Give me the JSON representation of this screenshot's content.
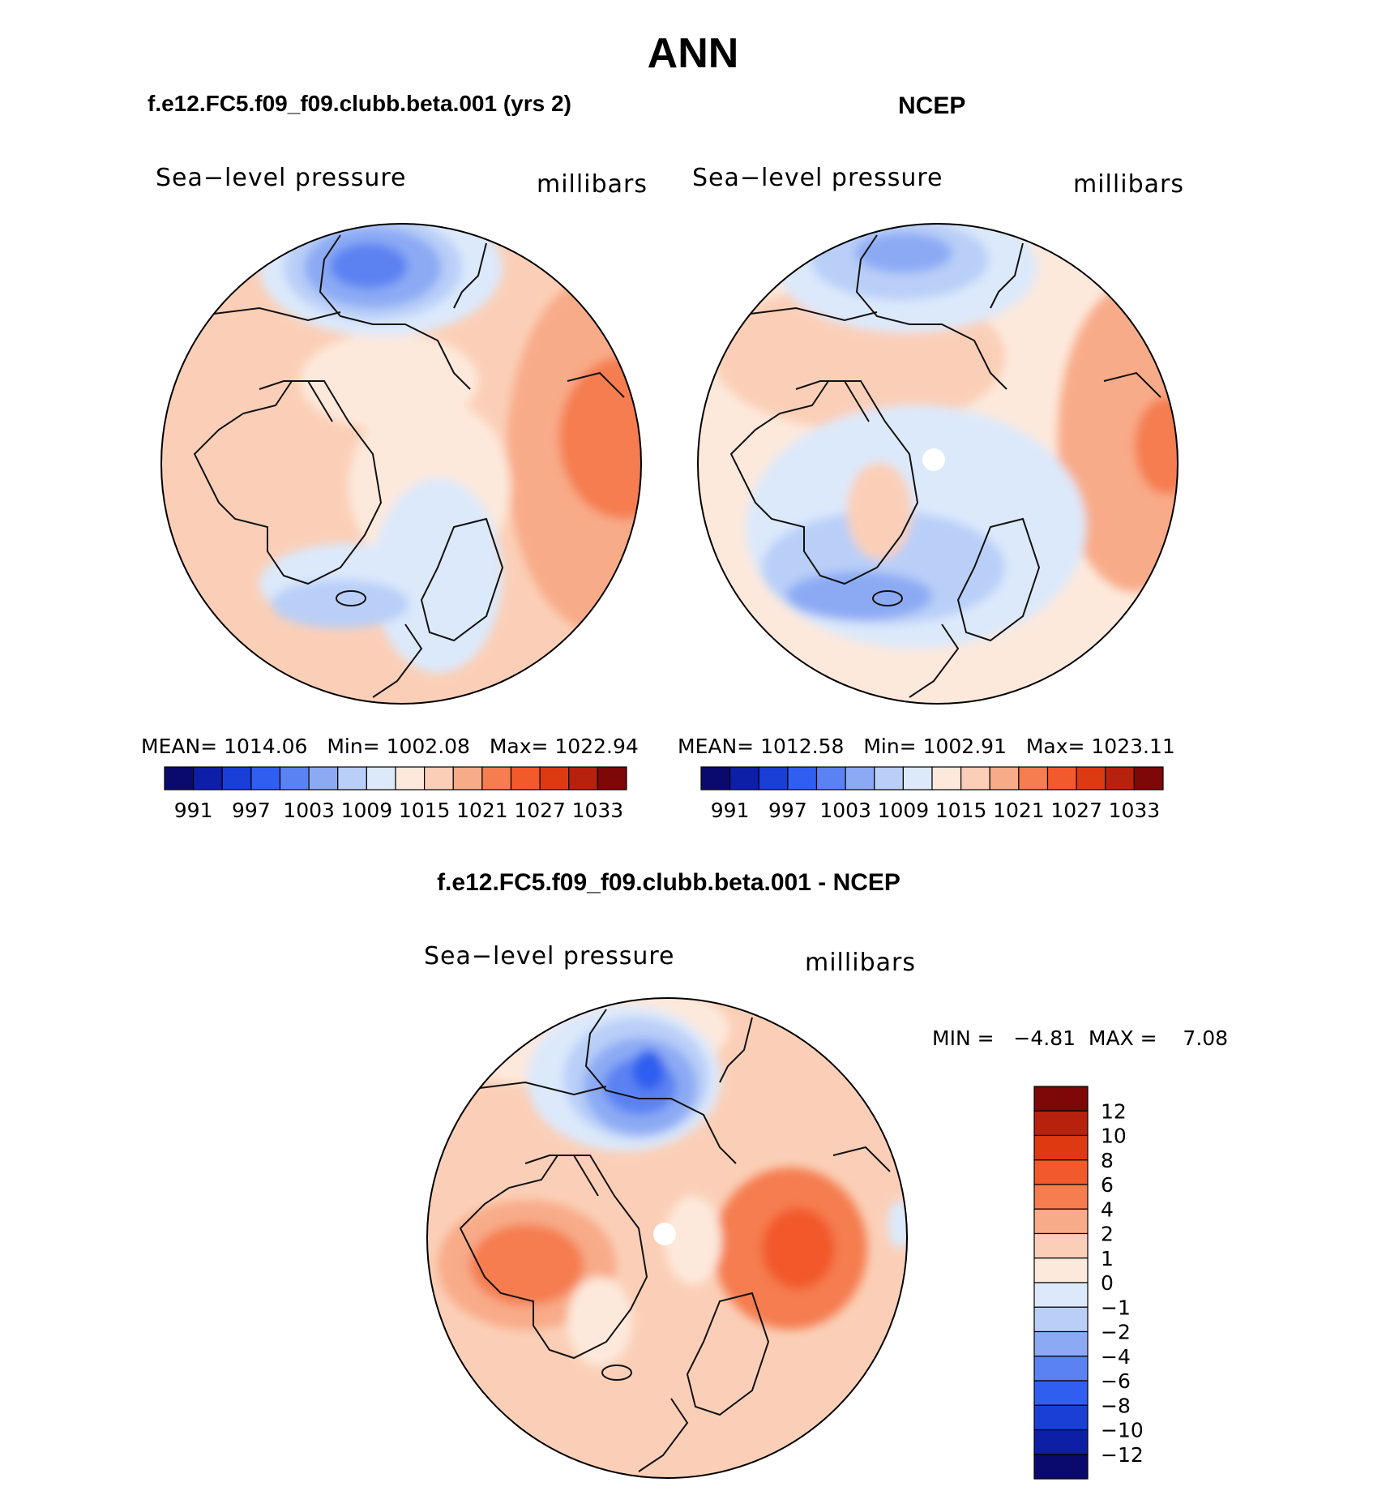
{
  "page_title": "ANN",
  "panels": [
    {
      "title": "f.e12.FC5.f09_f09.clubb.beta.001 (yrs 2)",
      "variable": "Sea−level pressure",
      "units": "millibars",
      "stats": {
        "mean_label": "MEAN=",
        "mean": "1014.06",
        "min_label": "Min=",
        "min": "1002.08",
        "max_label": "Max=",
        "max": "1022.94"
      }
    },
    {
      "title": "NCEP",
      "variable": "Sea−level pressure",
      "units": "millibars",
      "stats": {
        "mean_label": "MEAN=",
        "mean": "1012.58",
        "min_label": "Min=",
        "min": "1002.91",
        "max_label": "Max=",
        "max": "1023.11"
      }
    },
    {
      "title": "f.e12.FC5.f09_f09.clubb.beta.001 - NCEP",
      "variable": "Sea−level pressure",
      "units": "millibars",
      "stats": {
        "min_label": "MIN =",
        "min": "−4.81",
        "max_label": "MAX =",
        "max": "7.08"
      }
    }
  ],
  "abs_colorbar": {
    "colors": [
      "#0a0a6e",
      "#0d1fa6",
      "#1a3fd6",
      "#2f5ef0",
      "#5b82f2",
      "#8caaf4",
      "#b9cff8",
      "#dce9fb",
      "#fde9dc",
      "#fbcfb7",
      "#f8ab88",
      "#f57d50",
      "#f2592b",
      "#de3a12",
      "#b8210d",
      "#7e0707"
    ],
    "labels": [
      "991",
      "997",
      "1003",
      "1009",
      "1015",
      "1021",
      "1027",
      "1033"
    ]
  },
  "diff_colorbar": {
    "colors": [
      "#7e0707",
      "#b8210d",
      "#de3a12",
      "#f2592b",
      "#f57d50",
      "#f8ab88",
      "#fbcfb7",
      "#fde9dc",
      "#dce9fb",
      "#b9cff8",
      "#8caaf4",
      "#5b82f2",
      "#2f5ef0",
      "#1a3fd6",
      "#0d1fa6",
      "#0a0a6e"
    ],
    "labels": [
      "12",
      "10",
      "8",
      "6",
      "4",
      "2",
      "1",
      "0",
      "−1",
      "−2",
      "−4",
      "−6",
      "−8",
      "−10",
      "−12"
    ]
  },
  "map_colors": {
    "land_line": "#111111",
    "c_neutral_pos": "#fde9dc",
    "c_pos1": "#fbcfb7",
    "c_pos2": "#f8ab88",
    "c_pos3": "#f57d50",
    "c_pos4": "#f2592b",
    "c_neg1": "#dce9fb",
    "c_neg2": "#b9cff8",
    "c_neg3": "#8caaf4",
    "c_neg4": "#5b82f2",
    "c_neg5": "#2f5ef0"
  }
}
